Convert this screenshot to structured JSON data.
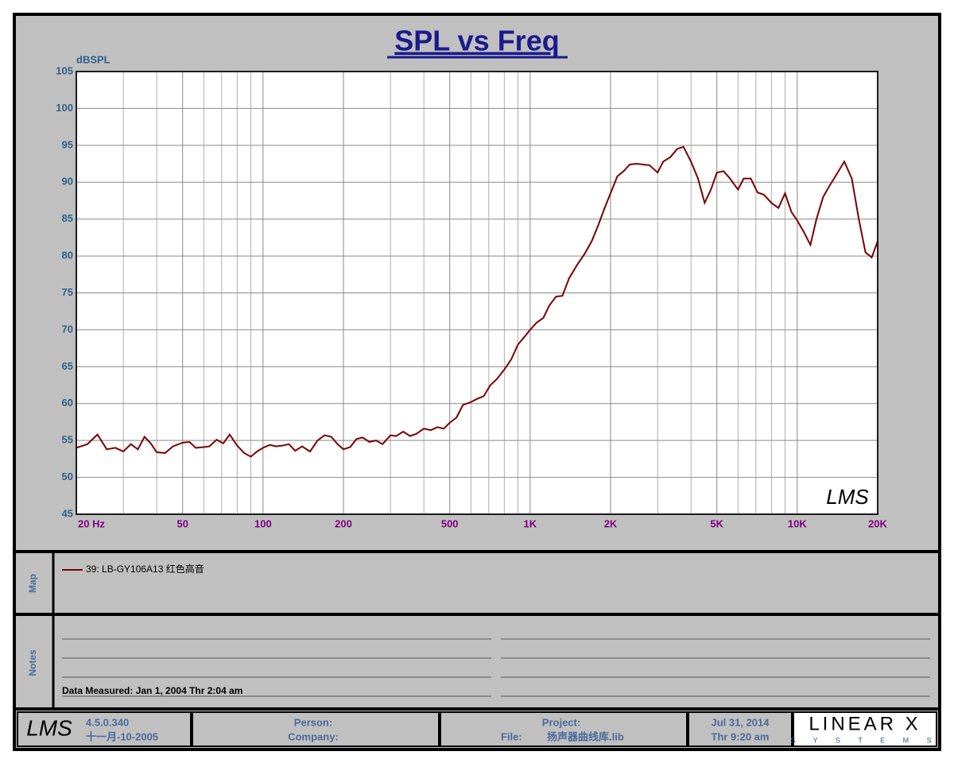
{
  "chart_data": {
    "type": "line",
    "title": "SPL vs Freq",
    "y_label": "dBSPL",
    "logo": "LMS",
    "x": [
      20,
      22,
      24,
      26,
      28,
      30,
      32,
      34,
      36,
      38,
      40,
      43,
      46,
      50,
      53,
      56,
      60,
      63,
      67,
      71,
      75,
      80,
      85,
      90,
      95,
      100,
      106,
      112,
      118,
      125,
      132,
      140,
      150,
      160,
      170,
      180,
      190,
      200,
      212,
      224,
      236,
      250,
      265,
      280,
      300,
      315,
      335,
      355,
      375,
      400,
      425,
      450,
      475,
      500,
      530,
      560,
      600,
      630,
      670,
      710,
      750,
      800,
      850,
      900,
      950,
      1000,
      1060,
      1120,
      1180,
      1250,
      1320,
      1400,
      1500,
      1600,
      1700,
      1800,
      1900,
      2000,
      2120,
      2240,
      2360,
      2500,
      2650,
      2800,
      3000,
      3150,
      3350,
      3550,
      3750,
      4000,
      4250,
      4500,
      4750,
      5000,
      5300,
      5600,
      6000,
      6300,
      6700,
      7100,
      7500,
      8000,
      8500,
      9000,
      9500,
      10000,
      10600,
      11200,
      11800,
      12500,
      13200,
      14000,
      15000,
      16000,
      17000,
      18000,
      19000,
      20000
    ],
    "series": [
      {
        "name": "39: LB-GY106A13 红色高音",
        "color": "#7a0000",
        "values": [
          54,
          54.5,
          55.8,
          53.8,
          54,
          53.5,
          54.5,
          53.8,
          55.5,
          54.6,
          53.4,
          53.3,
          54.2,
          54.7,
          54.8,
          54,
          54.1,
          54.2,
          55.1,
          54.6,
          55.8,
          54.3,
          53.3,
          52.8,
          53.5,
          54,
          54.4,
          54.2,
          54.3,
          54.5,
          53.6,
          54.2,
          53.5,
          55,
          55.7,
          55.5,
          54.5,
          53.8,
          54.1,
          55.2,
          55.4,
          54.8,
          55,
          54.5,
          55.7,
          55.6,
          56.2,
          55.6,
          55.9,
          56.6,
          56.4,
          56.8,
          56.6,
          57.4,
          58.1,
          59.8,
          60.2,
          60.6,
          61,
          62.5,
          63.3,
          64.6,
          66,
          68,
          69,
          70,
          71,
          71.6,
          73.3,
          74.5,
          74.6,
          77,
          78.8,
          80.3,
          82,
          84.2,
          86.5,
          88.5,
          90.8,
          91.5,
          92.4,
          92.5,
          92.4,
          92.3,
          91.3,
          92.8,
          93.4,
          94.5,
          94.8,
          92.8,
          90.5,
          87.2,
          89,
          91.3,
          91.5,
          90.5,
          89,
          90.5,
          90.5,
          88.6,
          88.3,
          87.2,
          86.5,
          88.5,
          86,
          84.8,
          83.2,
          81.5,
          85,
          88,
          89.5,
          91,
          92.8,
          90.5,
          85,
          80.5,
          79.8,
          82
        ]
      }
    ],
    "xlim": [
      20,
      20000
    ],
    "ylim": [
      45,
      105
    ],
    "log_x": true,
    "grid": true,
    "xticks": [
      {
        "value": 20,
        "label": "20  Hz"
      },
      50,
      100,
      200,
      500,
      {
        "value": 1000,
        "label": "1K"
      },
      {
        "value": 2000,
        "label": "2K"
      },
      {
        "value": 5000,
        "label": "5K"
      },
      {
        "value": 10000,
        "label": "10K"
      },
      {
        "value": 20000,
        "label": "20K"
      }
    ],
    "minor_xticks": [
      30,
      40,
      60,
      70,
      80,
      90,
      300,
      400,
      600,
      700,
      800,
      900,
      3000,
      4000,
      6000,
      7000,
      8000,
      9000
    ],
    "yticks": [
      45,
      50,
      55,
      60,
      65,
      70,
      75,
      80,
      85,
      90,
      95,
      100,
      105
    ]
  },
  "panels": {
    "map_label": "Map",
    "notes_label": "Notes",
    "notes_text": "Data Measured: Jan  1, 2004  Thr  2:04 am"
  },
  "footer": {
    "logo": "LMS",
    "version": "4.5.0.340",
    "build_date": "十一月-10-2005",
    "person": "Person:",
    "company": "Company:",
    "project": "Project:",
    "file_label": "File:",
    "file": "扬声器曲线库.lib",
    "date": "Jul 31, 2014",
    "time": "Thr  9:20 am",
    "brand": "LINEAR X",
    "brand_sub": "S Y S T E M S"
  }
}
